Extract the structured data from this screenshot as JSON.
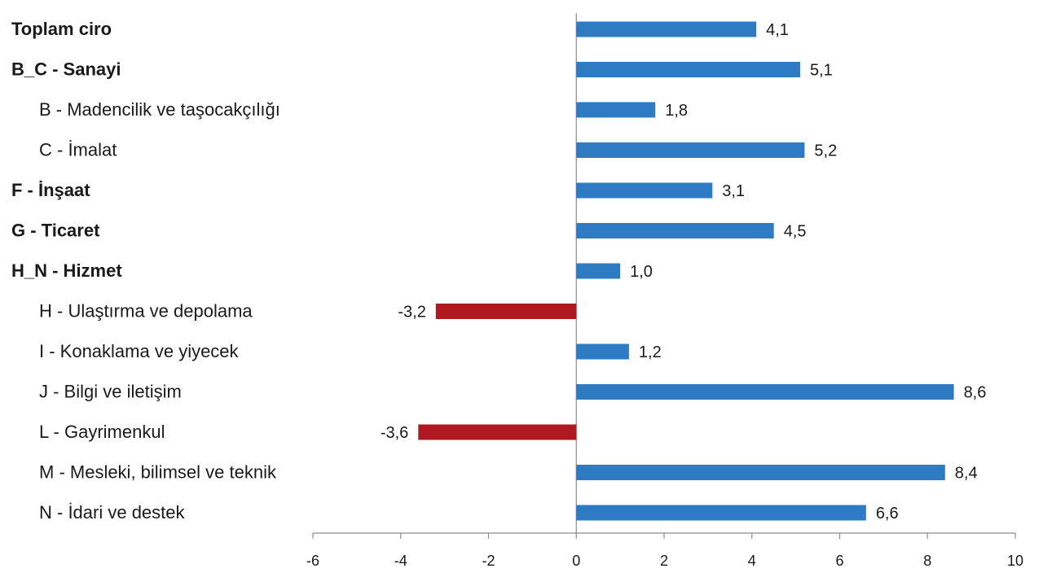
{
  "chart_data": {
    "type": "bar",
    "orientation": "horizontal",
    "categories": [
      "Toplam ciro",
      "B_C - Sanayi",
      "B - Madencilik ve taşocakçılığı",
      "C - İmalat",
      "F - İnşaat",
      "G - Ticaret",
      "H_N - Hizmet",
      "H - Ulaştırma ve depolama",
      "I - Konaklama ve yiyecek",
      "J - Bilgi ve iletişim",
      "L - Gayrimenkul",
      "M - Mesleki, bilimsel ve teknik",
      "N - İdari ve destek"
    ],
    "bold_categories": [
      true,
      true,
      false,
      false,
      true,
      true,
      true,
      false,
      false,
      false,
      false,
      false,
      false
    ],
    "values": [
      4.1,
      5.1,
      1.8,
      5.2,
      3.1,
      4.5,
      1.0,
      -3.2,
      1.2,
      8.6,
      -3.6,
      8.4,
      6.6
    ],
    "value_labels": [
      "4,1",
      "5,1",
      "1,8",
      "5,2",
      "3,1",
      "4,5",
      "1,0",
      "-3,2",
      "1,2",
      "8,6",
      "-3,6",
      "8,4",
      "6,6"
    ],
    "xlim": [
      -6,
      10
    ],
    "xticks": [
      -6,
      -4,
      -2,
      0,
      2,
      4,
      6,
      8,
      10
    ],
    "xtick_labels": [
      "-6",
      "-4",
      "-2",
      "0",
      "2",
      "4",
      "6",
      "8",
      "10"
    ],
    "positive_color": "#2e7bc4",
    "negative_color": "#b0191f",
    "grid": false,
    "legend": "none",
    "title": "",
    "xlabel": "",
    "ylabel": ""
  }
}
